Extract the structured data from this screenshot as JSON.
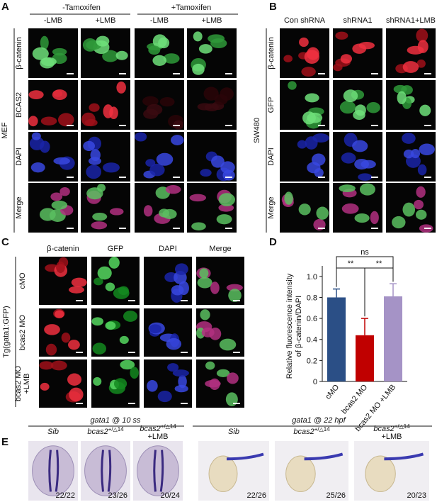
{
  "panel_a": {
    "label": "A",
    "groups": [
      "-Tamoxifen",
      "+Tamoxifen"
    ],
    "columns": [
      "-LMB",
      "+LMB",
      "-LMB",
      "+LMB"
    ],
    "rows": [
      "β-catenin",
      "BCAS2",
      "DAPI",
      "Merge"
    ],
    "cell_line": "MEF"
  },
  "panel_b": {
    "label": "B",
    "columns": [
      "Con shRNA",
      "shRNA1",
      "shRNA1+LMB"
    ],
    "rows": [
      "β-catenin",
      "GFP",
      "DAPI",
      "Merge"
    ],
    "cell_line": "SW480"
  },
  "panel_c": {
    "label": "C",
    "columns": [
      "β-catenin",
      "GFP",
      "DAPI",
      "Merge"
    ],
    "rows": [
      [
        "cMO"
      ],
      [
        "bcas2 MO"
      ],
      [
        "bcas2 MO",
        "+LMB"
      ]
    ],
    "line": "Tg(gata1:GFP)"
  },
  "chart_data": {
    "type": "bar",
    "panel_label": "D",
    "ylabel": [
      "Relative fluorescence intensity",
      "of β-catenin/DAPI"
    ],
    "categories": [
      "cMO",
      "bcas2 MO",
      "bcas2 MO +LMB"
    ],
    "values": [
      0.8,
      0.44,
      0.81
    ],
    "errors": [
      0.08,
      0.16,
      0.12
    ],
    "colors": [
      "#2b4f86",
      "#c00000",
      "#a593c6"
    ],
    "ylim": [
      0,
      1.1
    ],
    "yticks": [
      0,
      0.2,
      0.4,
      0.6,
      0.8,
      {
        "value": 1,
        "label": "1.0"
      }
    ],
    "significance": [
      "**",
      "**",
      "ns"
    ]
  },
  "panel_e": {
    "label": "E",
    "groups": [
      {
        "title": "gata1 @ 10 ss",
        "samples": [
          {
            "name": [
              "Sib"
            ],
            "count": "22/22"
          },
          {
            "name": [
              "bcas2",
              "+/△14"
            ],
            "count": "23/26"
          },
          {
            "name": [
              "bcas2",
              "+/△14",
              "+LMB"
            ],
            "count": "20/24"
          }
        ]
      },
      {
        "title": "gata1 @ 22 hpf",
        "samples": [
          {
            "name": [
              "Sib"
            ],
            "count": "22/26"
          },
          {
            "name": [
              "bcas2",
              "+/△14"
            ],
            "count": "25/26"
          },
          {
            "name": [
              "bcas2",
              "+/△14",
              "+LMB"
            ],
            "count": "20/23"
          }
        ]
      }
    ]
  }
}
